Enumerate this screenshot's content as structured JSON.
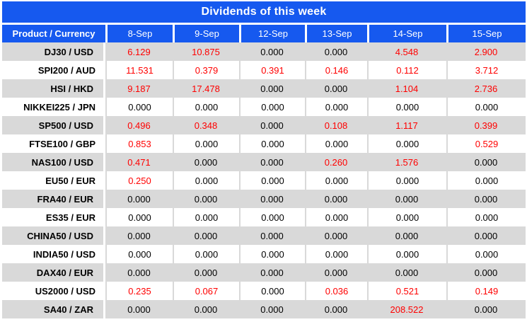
{
  "colors": {
    "header_blue": "#1659EF",
    "row_stripe_gray": "#D9D9D9",
    "nonzero_value_red": "#FF0000",
    "zero_value_black": "#000000",
    "header_text_white": "#FFFFFF"
  },
  "chart_data": {
    "type": "table",
    "title": "Dividends of this week",
    "columns": [
      "Product / Currency",
      "8-Sep",
      "9-Sep",
      "12-Sep",
      "13-Sep",
      "14-Sep",
      "15-Sep"
    ],
    "rows": [
      {
        "product": "DJ30 / USD",
        "values": [
          "6.129",
          "10.875",
          "0.000",
          "0.000",
          "4.548",
          "2.900"
        ]
      },
      {
        "product": "SPI200 / AUD",
        "values": [
          "11.531",
          "0.379",
          "0.391",
          "0.146",
          "0.112",
          "3.712"
        ]
      },
      {
        "product": "HSI / HKD",
        "values": [
          "9.187",
          "17.478",
          "0.000",
          "0.000",
          "1.104",
          "2.736"
        ]
      },
      {
        "product": "NIKKEI225 / JPN",
        "values": [
          "0.000",
          "0.000",
          "0.000",
          "0.000",
          "0.000",
          "0.000"
        ]
      },
      {
        "product": "SP500 / USD",
        "values": [
          "0.496",
          "0.348",
          "0.000",
          "0.108",
          "1.117",
          "0.399"
        ]
      },
      {
        "product": "FTSE100 / GBP",
        "values": [
          "0.853",
          "0.000",
          "0.000",
          "0.000",
          "0.000",
          "0.529"
        ]
      },
      {
        "product": "NAS100 / USD",
        "values": [
          "0.471",
          "0.000",
          "0.000",
          "0.260",
          "1.576",
          "0.000"
        ]
      },
      {
        "product": "EU50 / EUR",
        "values": [
          "0.250",
          "0.000",
          "0.000",
          "0.000",
          "0.000",
          "0.000"
        ]
      },
      {
        "product": "FRA40 / EUR",
        "values": [
          "0.000",
          "0.000",
          "0.000",
          "0.000",
          "0.000",
          "0.000"
        ]
      },
      {
        "product": "ES35 / EUR",
        "values": [
          "0.000",
          "0.000",
          "0.000",
          "0.000",
          "0.000",
          "0.000"
        ]
      },
      {
        "product": "CHINA50 / USD",
        "values": [
          "0.000",
          "0.000",
          "0.000",
          "0.000",
          "0.000",
          "0.000"
        ]
      },
      {
        "product": "INDIA50 / USD",
        "values": [
          "0.000",
          "0.000",
          "0.000",
          "0.000",
          "0.000",
          "0.000"
        ]
      },
      {
        "product": "DAX40 / EUR",
        "values": [
          "0.000",
          "0.000",
          "0.000",
          "0.000",
          "0.000",
          "0.000"
        ]
      },
      {
        "product": "US2000 / USD",
        "values": [
          "0.235",
          "0.067",
          "0.000",
          "0.036",
          "0.521",
          "0.149"
        ]
      },
      {
        "product": "SA40 / ZAR",
        "values": [
          "0.000",
          "0.000",
          "0.000",
          "0.000",
          "208.522",
          "0.000"
        ]
      }
    ]
  }
}
